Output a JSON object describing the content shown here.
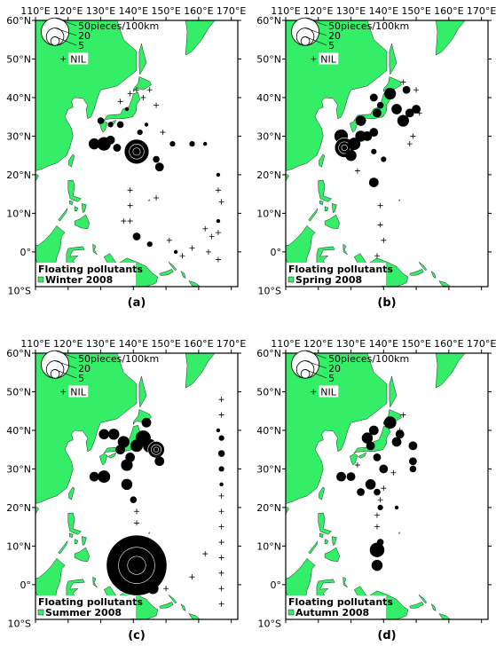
{
  "lon_ticks": [
    "110°E",
    "120°E",
    "130°E",
    "140°E",
    "150°E",
    "160°E",
    "170°E"
  ],
  "lat_ticks": [
    "60°N",
    "50°N",
    "40°N",
    "30°N",
    "20°N",
    "10°N",
    "0°",
    "10°S"
  ],
  "legend": {
    "sizes": [
      "50pieces/100km",
      "20",
      "5"
    ],
    "nil": "NIL"
  },
  "colors": {
    "land": "#33ee66",
    "ocean": "#ffffff",
    "marker": "#000000"
  },
  "panels": [
    {
      "id": "a",
      "caption": "(a)",
      "title": "Floating pollutants",
      "season": "Winter 2008",
      "obs": [
        {
          "lon": 128,
          "lat": 28,
          "v": 8
        },
        {
          "lon": 131,
          "lat": 28,
          "v": 12
        },
        {
          "lon": 133,
          "lat": 29,
          "v": 5
        },
        {
          "lon": 135,
          "lat": 27,
          "v": 4
        },
        {
          "lon": 141,
          "lat": 26,
          "v": 40
        },
        {
          "lon": 147,
          "lat": 24,
          "v": 3
        },
        {
          "lon": 148,
          "lat": 22,
          "v": 5
        },
        {
          "lon": 152,
          "lat": 28,
          "v": 2
        },
        {
          "lon": 158,
          "lat": 28,
          "v": 2
        },
        {
          "lon": 162,
          "lat": 28,
          "v": 1
        },
        {
          "lon": 130,
          "lat": 34,
          "v": 3
        },
        {
          "lon": 133,
          "lat": 33,
          "v": 2
        },
        {
          "lon": 136,
          "lat": 33,
          "v": 3
        },
        {
          "lon": 138,
          "lat": 37,
          "v": 1
        },
        {
          "lon": 141,
          "lat": 4,
          "v": 4
        },
        {
          "lon": 145,
          "lat": 2,
          "v": 2
        },
        {
          "lon": 142,
          "lat": 31,
          "v": 2
        },
        {
          "lon": 144,
          "lat": 33,
          "v": 1
        },
        {
          "lon": 166,
          "lat": 8,
          "v": 1
        },
        {
          "lon": 166,
          "lat": 20,
          "v": 1
        },
        {
          "lon": 153,
          "lat": 0,
          "v": 1
        }
      ],
      "nil": [
        {
          "lon": 139,
          "lat": 41
        },
        {
          "lon": 141,
          "lat": 42
        },
        {
          "lon": 143,
          "lat": 40
        },
        {
          "lon": 145,
          "lat": 42
        },
        {
          "lon": 136,
          "lat": 39
        },
        {
          "lon": 147,
          "lat": 38
        },
        {
          "lon": 139,
          "lat": 16
        },
        {
          "lon": 139,
          "lat": 12
        },
        {
          "lon": 137,
          "lat": 8
        },
        {
          "lon": 139,
          "lat": 8
        },
        {
          "lon": 151,
          "lat": 3
        },
        {
          "lon": 158,
          "lat": 1
        },
        {
          "lon": 162,
          "lat": 6
        },
        {
          "lon": 164,
          "lat": 4
        },
        {
          "lon": 166,
          "lat": 5
        },
        {
          "lon": 166,
          "lat": 16
        },
        {
          "lon": 167,
          "lat": 13
        },
        {
          "lon": 166,
          "lat": -2
        },
        {
          "lon": 163,
          "lat": 0
        },
        {
          "lon": 155,
          "lat": -1
        },
        {
          "lon": 147,
          "lat": 14
        },
        {
          "lon": 149,
          "lat": 31
        }
      ]
    },
    {
      "id": "b",
      "caption": "(b)",
      "title": "Floating pollutants",
      "season": "Spring 2008",
      "obs": [
        {
          "lon": 127,
          "lat": 30,
          "v": 12
        },
        {
          "lon": 128,
          "lat": 27,
          "v": 25
        },
        {
          "lon": 131,
          "lat": 28,
          "v": 10
        },
        {
          "lon": 130,
          "lat": 25,
          "v": 8
        },
        {
          "lon": 133,
          "lat": 30,
          "v": 8
        },
        {
          "lon": 133,
          "lat": 34,
          "v": 7
        },
        {
          "lon": 135,
          "lat": 30,
          "v": 6
        },
        {
          "lon": 137,
          "lat": 31,
          "v": 5
        },
        {
          "lon": 138,
          "lat": 36,
          "v": 5
        },
        {
          "lon": 137,
          "lat": 40,
          "v": 4
        },
        {
          "lon": 139,
          "lat": 38,
          "v": 3
        },
        {
          "lon": 142,
          "lat": 41,
          "v": 9
        },
        {
          "lon": 144,
          "lat": 37,
          "v": 7
        },
        {
          "lon": 146,
          "lat": 34,
          "v": 9
        },
        {
          "lon": 148,
          "lat": 36,
          "v": 5
        },
        {
          "lon": 150,
          "lat": 37,
          "v": 5
        },
        {
          "lon": 147,
          "lat": 42,
          "v": 4
        },
        {
          "lon": 137,
          "lat": 26,
          "v": 2
        },
        {
          "lon": 137,
          "lat": 18,
          "v": 6
        },
        {
          "lon": 140,
          "lat": 24,
          "v": 2
        }
      ],
      "nil": [
        {
          "lon": 146,
          "lat": 44
        },
        {
          "lon": 150,
          "lat": 42
        },
        {
          "lon": 151,
          "lat": 36
        },
        {
          "lon": 149,
          "lat": 30
        },
        {
          "lon": 148,
          "lat": 28
        },
        {
          "lon": 132,
          "lat": 21
        },
        {
          "lon": 139,
          "lat": 12
        },
        {
          "lon": 139,
          "lat": 7
        },
        {
          "lon": 140,
          "lat": 3
        },
        {
          "lon": 138,
          "lat": -1
        }
      ]
    },
    {
      "id": "c",
      "caption": "(c)",
      "title": "Floating pollutants",
      "season": "Summer 2008",
      "obs": [
        {
          "lon": 128,
          "lat": 28,
          "v": 6
        },
        {
          "lon": 131,
          "lat": 28,
          "v": 10
        },
        {
          "lon": 131,
          "lat": 39,
          "v": 7
        },
        {
          "lon": 134,
          "lat": 39,
          "v": 8
        },
        {
          "lon": 136,
          "lat": 35,
          "v": 6
        },
        {
          "lon": 137,
          "lat": 37,
          "v": 9
        },
        {
          "lon": 138,
          "lat": 31,
          "v": 9
        },
        {
          "lon": 138,
          "lat": 26,
          "v": 8
        },
        {
          "lon": 139,
          "lat": 33,
          "v": 6
        },
        {
          "lon": 141,
          "lat": 36,
          "v": 10
        },
        {
          "lon": 143,
          "lat": 38,
          "v": 15
        },
        {
          "lon": 144,
          "lat": 42,
          "v": 6
        },
        {
          "lon": 145,
          "lat": 36,
          "v": 12
        },
        {
          "lon": 147,
          "lat": 35,
          "v": 18
        },
        {
          "lon": 148,
          "lat": 32,
          "v": 6
        },
        {
          "lon": 141,
          "lat": 5,
          "v": 240
        },
        {
          "lon": 146,
          "lat": -1,
          "v": 8
        },
        {
          "lon": 140,
          "lat": 12,
          "v": 2
        },
        {
          "lon": 140,
          "lat": 22,
          "v": 3
        },
        {
          "lon": 167,
          "lat": 34,
          "v": 3
        },
        {
          "lon": 167,
          "lat": 30,
          "v": 2
        },
        {
          "lon": 167,
          "lat": 38,
          "v": 2
        },
        {
          "lon": 167,
          "lat": 26,
          "v": 1
        },
        {
          "lon": 166,
          "lat": 40,
          "v": 1
        }
      ],
      "nil": [
        {
          "lon": 167,
          "lat": 48
        },
        {
          "lon": 167,
          "lat": 44
        },
        {
          "lon": 167,
          "lat": 23
        },
        {
          "lon": 167,
          "lat": 19
        },
        {
          "lon": 167,
          "lat": 15
        },
        {
          "lon": 167,
          "lat": 11
        },
        {
          "lon": 167,
          "lat": 7
        },
        {
          "lon": 167,
          "lat": 3
        },
        {
          "lon": 167,
          "lat": -1
        },
        {
          "lon": 167,
          "lat": -5
        },
        {
          "lon": 162,
          "lat": 8
        },
        {
          "lon": 158,
          "lat": 2
        },
        {
          "lon": 150,
          "lat": -1
        },
        {
          "lon": 141,
          "lat": 16
        },
        {
          "lon": 141,
          "lat": 19
        }
      ]
    },
    {
      "id": "d",
      "caption": "(d)",
      "title": "Floating pollutants",
      "season": "Autumn 2008",
      "obs": [
        {
          "lon": 127,
          "lat": 28,
          "v": 6
        },
        {
          "lon": 130,
          "lat": 28,
          "v": 5
        },
        {
          "lon": 133,
          "lat": 24,
          "v": 4
        },
        {
          "lon": 136,
          "lat": 26,
          "v": 7
        },
        {
          "lon": 140,
          "lat": 30,
          "v": 5
        },
        {
          "lon": 138,
          "lat": 24,
          "v": 3
        },
        {
          "lon": 135,
          "lat": 38,
          "v": 8
        },
        {
          "lon": 136,
          "lat": 36,
          "v": 5
        },
        {
          "lon": 137,
          "lat": 40,
          "v": 6
        },
        {
          "lon": 138,
          "lat": 33,
          "v": 4
        },
        {
          "lon": 142,
          "lat": 42,
          "v": 10
        },
        {
          "lon": 144,
          "lat": 37,
          "v": 6
        },
        {
          "lon": 145,
          "lat": 39,
          "v": 5
        },
        {
          "lon": 149,
          "lat": 36,
          "v": 5
        },
        {
          "lon": 149,
          "lat": 32,
          "v": 4
        },
        {
          "lon": 149,
          "lat": 30,
          "v": 3
        },
        {
          "lon": 138,
          "lat": 9,
          "v": 14
        },
        {
          "lon": 138,
          "lat": 5,
          "v": 8
        },
        {
          "lon": 139,
          "lat": 11,
          "v": 3
        },
        {
          "lon": 139,
          "lat": 20,
          "v": 2
        },
        {
          "lon": 144,
          "lat": 20,
          "v": 1
        }
      ],
      "nil": [
        {
          "lon": 146,
          "lat": 44
        },
        {
          "lon": 145,
          "lat": 40
        },
        {
          "lon": 138,
          "lat": 18
        },
        {
          "lon": 138,
          "lat": 15
        },
        {
          "lon": 139,
          "lat": 22
        },
        {
          "lon": 140,
          "lat": 25
        },
        {
          "lon": 143,
          "lat": 29
        },
        {
          "lon": 132,
          "lat": 31
        }
      ]
    }
  ]
}
